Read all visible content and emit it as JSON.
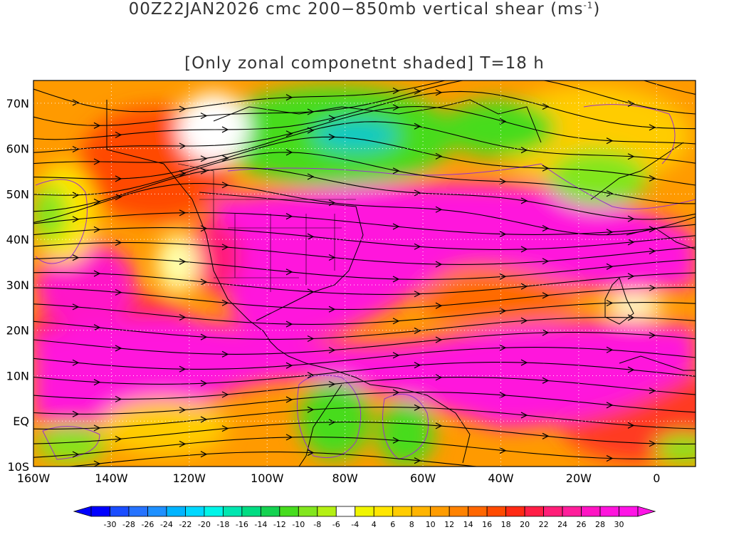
{
  "header": {
    "title_line1": "00Z22JAN2026 cmc 200−850mb vertical shear (ms",
    "title_unit_exp": "-1",
    "title_line1_end": ")",
    "title_line2": "[Only zonal componetnt shaded] T=18 h"
  },
  "map": {
    "lon_range": [
      -160,
      10
    ],
    "lat_range": [
      -10,
      75
    ],
    "lon_labels": [
      "160W",
      "140W",
      "120W",
      "100W",
      "80W",
      "60W",
      "40W",
      "20W",
      "0"
    ],
    "lon_values": [
      -160,
      -140,
      -120,
      -100,
      -80,
      -60,
      -40,
      -20,
      0
    ],
    "lat_labels": [
      "10S",
      "EQ",
      "10N",
      "20N",
      "30N",
      "40N",
      "50N",
      "60N",
      "70N"
    ],
    "lat_values": [
      -10,
      0,
      10,
      20,
      30,
      40,
      50,
      60,
      70
    ],
    "gridlines": "dotted",
    "fill_variable": "zonal shear component (m/s)",
    "overlay": "shear streamlines"
  },
  "colorbar": {
    "labels": [
      "-30",
      "-28",
      "-26",
      "-24",
      "-22",
      "-20",
      "-18",
      "-16",
      "-14",
      "-12",
      "-10",
      "-8",
      "-6",
      "-4",
      "4",
      "6",
      "8",
      "10",
      "12",
      "14",
      "16",
      "18",
      "20",
      "22",
      "24",
      "26",
      "28",
      "30"
    ],
    "colors": [
      "#0000ff",
      "#1a4dff",
      "#2673ff",
      "#1e90ff",
      "#00b4ff",
      "#00d8ff",
      "#00f5e8",
      "#00e6b0",
      "#00dc82",
      "#14d250",
      "#46dc1e",
      "#82e61e",
      "#b4f014",
      "#ffffff",
      "#f0f500",
      "#ffe600",
      "#ffcc00",
      "#ffb400",
      "#ff9c00",
      "#ff8200",
      "#ff6600",
      "#ff4a00",
      "#ff2a14",
      "#ff1e46",
      "#ff1e78",
      "#ff1e9b",
      "#ff14c3",
      "#ff14dc",
      "#ff14e6"
    ]
  }
}
